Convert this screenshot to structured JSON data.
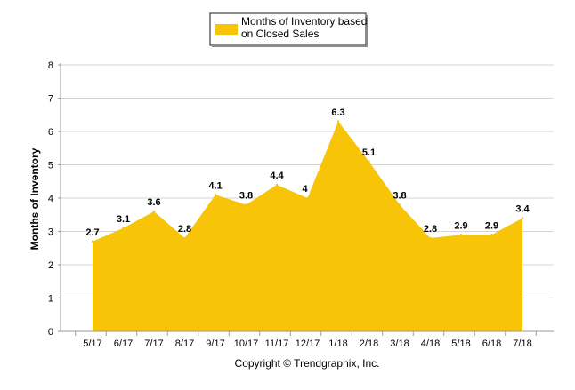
{
  "chart_data": {
    "type": "area",
    "categories": [
      "5/17",
      "6/17",
      "7/17",
      "8/17",
      "9/17",
      "10/17",
      "11/17",
      "12/17",
      "1/18",
      "2/18",
      "3/18",
      "4/18",
      "5/18",
      "6/18",
      "7/18"
    ],
    "series": [
      {
        "name": "Months of Inventory based on Closed Sales",
        "legend_lines": [
          "Months of Inventory based",
          "on Closed Sales"
        ],
        "values": [
          2.7,
          3.1,
          3.6,
          2.8,
          4.1,
          3.8,
          4.4,
          4,
          6.3,
          5.1,
          3.8,
          2.8,
          2.9,
          2.9,
          3.4
        ],
        "data_labels": [
          "2.7",
          "3.1",
          "3.6",
          "2.8",
          "4.1",
          "3.8",
          "4.4",
          "4",
          "6.3",
          "5.1",
          "3.8",
          "2.8",
          "2.9",
          "2.9",
          "3.4"
        ],
        "color": "#F7C408"
      }
    ],
    "title": "",
    "xlabel": "",
    "ylabel": "Months of Inventory",
    "ylim": [
      0,
      8
    ],
    "yticks": [
      "0",
      "1",
      "2",
      "3",
      "4",
      "5",
      "6",
      "7",
      "8"
    ],
    "grid": true,
    "legend_position": "top-center",
    "colors": {
      "area": "#F7C408",
      "grid": "#D4D4D4",
      "axis": "#9A9A9A",
      "text": "#000000"
    }
  },
  "footer": {
    "copyright": "Copyright © Trendgraphix, Inc."
  }
}
